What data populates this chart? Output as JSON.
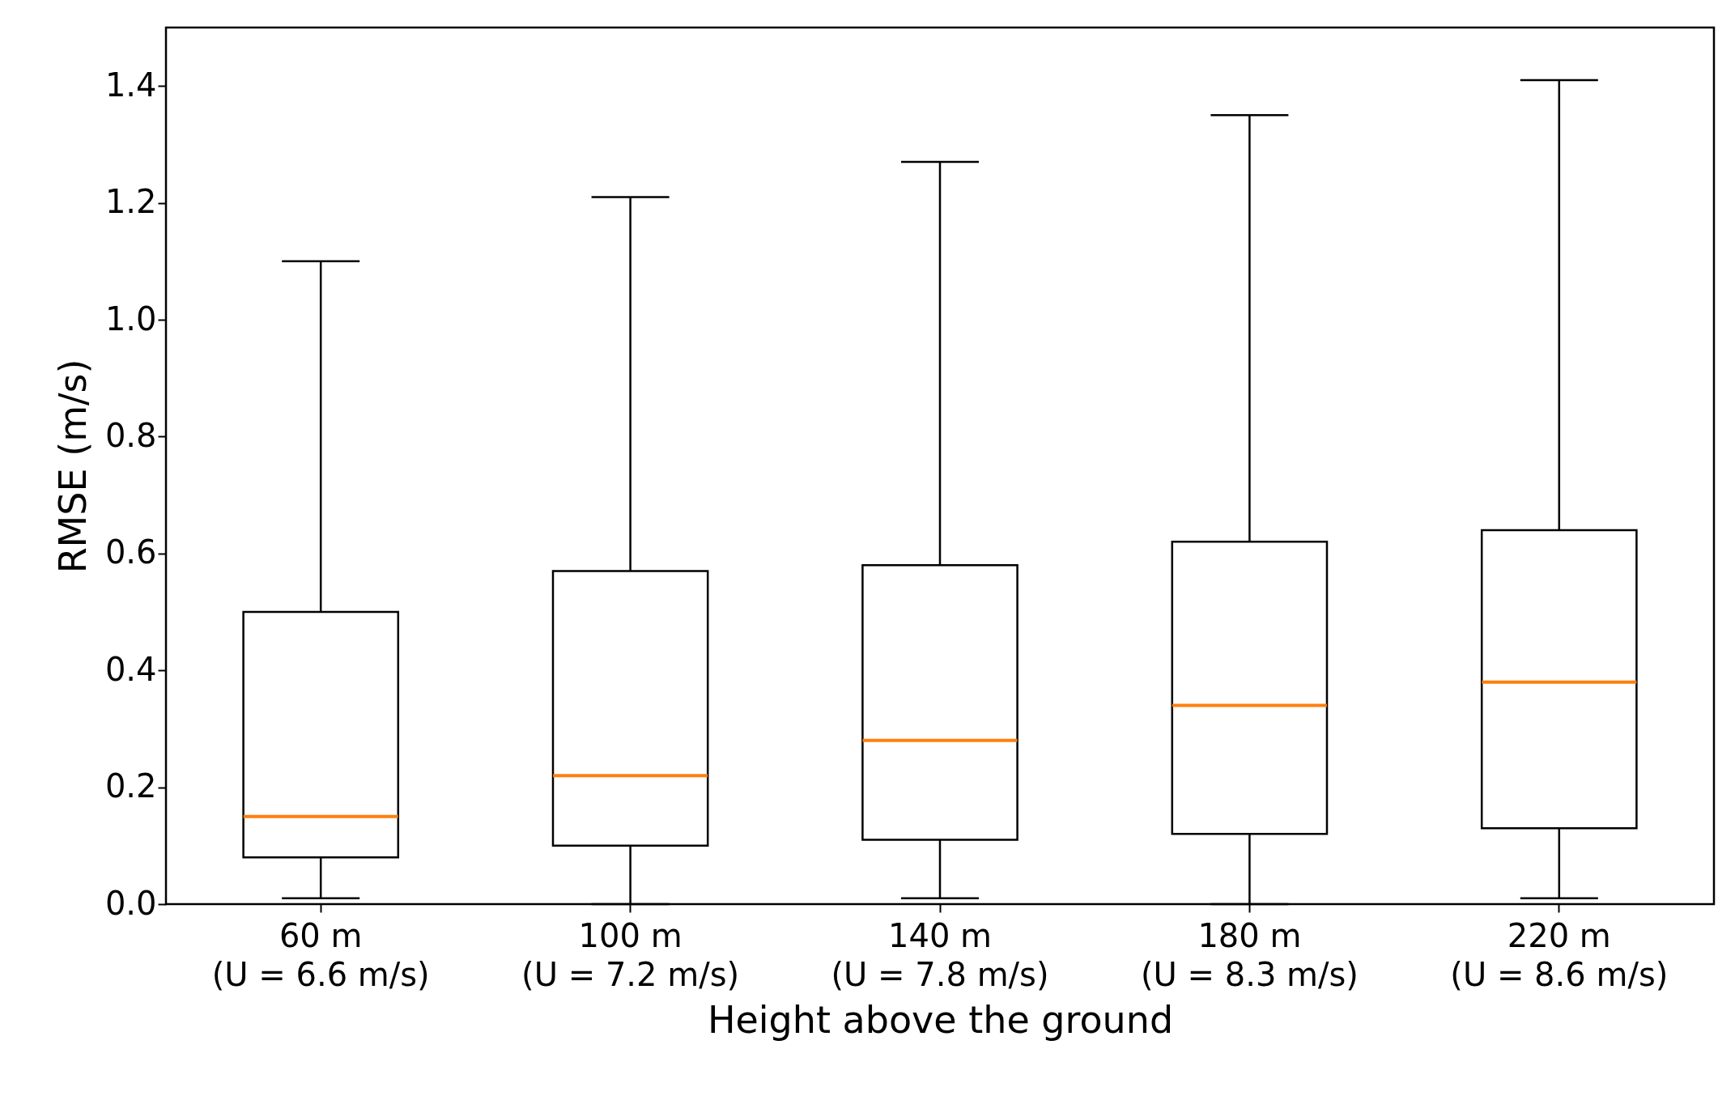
{
  "chart_data": {
    "type": "box",
    "xlabel": "Height above the ground",
    "ylabel": "RMSE (m/s)",
    "categories": [
      "60 m\n(U = 6.6 m/s)",
      "100 m\n(U = 7.2 m/s)",
      "140 m\n(U = 7.8 m/s)",
      "180 m\n(U = 8.3 m/s)",
      "220 m\n(U = 8.6 m/s)"
    ],
    "boxes": [
      {
        "low": 0.01,
        "q1": 0.08,
        "median": 0.15,
        "q3": 0.5,
        "high": 1.1
      },
      {
        "low": 0.0,
        "q1": 0.1,
        "median": 0.22,
        "q3": 0.57,
        "high": 1.21
      },
      {
        "low": 0.01,
        "q1": 0.11,
        "median": 0.28,
        "q3": 0.58,
        "high": 1.27
      },
      {
        "low": 0.0,
        "q1": 0.12,
        "median": 0.34,
        "q3": 0.62,
        "high": 1.35
      },
      {
        "low": 0.01,
        "q1": 0.13,
        "median": 0.38,
        "q3": 0.64,
        "high": 1.41
      }
    ],
    "ylim": [
      0,
      1.5
    ],
    "yticks": [
      {
        "value": 0,
        "label": "0.0"
      },
      0.2,
      0.4,
      0.6,
      0.8,
      {
        "value": 1,
        "label": "1.0"
      },
      1.2,
      1.4
    ],
    "grid": false
  }
}
